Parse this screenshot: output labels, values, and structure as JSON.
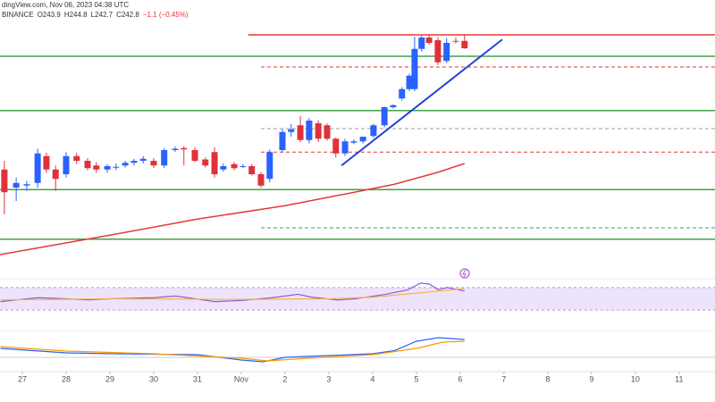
{
  "header": {
    "source": "dingView.com, Nov 06, 2023 04:38 UTC",
    "exchange": "BINANCE",
    "open": "O243.9",
    "high": "H244.8",
    "low": "L242.7",
    "close": "C242.8",
    "change": "−1.1 (−0.45%)"
  },
  "chart_data": [
    {
      "type": "candlestick",
      "up_color": "#2962ff",
      "down_color": "#e0313b",
      "xlim": [
        -0.51,
        15.82
      ],
      "ylim": [
        210,
        250
      ],
      "xticks": [
        {
          "value": 0,
          "label": "27"
        },
        {
          "value": 1,
          "label": "28"
        },
        {
          "value": 2,
          "label": "29"
        },
        {
          "value": 3,
          "label": "30"
        },
        {
          "value": 4,
          "label": "31"
        },
        {
          "value": 5,
          "label": "Nov"
        },
        {
          "value": 6,
          "label": "2"
        },
        {
          "value": 7,
          "label": "3"
        },
        {
          "value": 8,
          "label": "4"
        },
        {
          "value": 9,
          "label": "5"
        },
        {
          "value": 10,
          "label": "6"
        },
        {
          "value": 11,
          "label": "7"
        },
        {
          "value": 12,
          "label": "8"
        },
        {
          "value": 13,
          "label": "9"
        },
        {
          "value": 14,
          "label": "10"
        },
        {
          "value": 15,
          "label": "11"
        }
      ],
      "x": [
        -0.41,
        -0.14,
        0.1,
        0.35,
        0.55,
        0.76,
        1.0,
        1.24,
        1.49,
        1.69,
        1.94,
        2.14,
        2.35,
        2.55,
        2.76,
        3.0,
        3.24,
        3.49,
        3.69,
        3.94,
        4.18,
        4.39,
        4.59,
        4.84,
        5.04,
        5.24,
        5.45,
        5.65,
        5.94,
        6.14,
        6.35,
        6.55,
        6.76,
        6.96,
        7.16,
        7.37,
        7.57,
        7.78,
        8.02,
        8.27,
        8.47,
        8.67,
        8.84,
        8.96,
        9.12,
        9.29,
        9.49,
        9.69,
        9.9,
        10.1
      ],
      "open": [
        224.7,
        222,
        222.3,
        222.7,
        226.7,
        224.7,
        224,
        226.7,
        226,
        225.3,
        224.7,
        225,
        225.3,
        225.7,
        226,
        226,
        225.3,
        227.6,
        227.9,
        227.6,
        226.2,
        227.3,
        224.7,
        225.5,
        225.1,
        225.2,
        224,
        223.3,
        227.6,
        230.3,
        231.3,
        229.1,
        231.6,
        231.3,
        229.3,
        227.1,
        228.7,
        228.9,
        229.7,
        231.3,
        234,
        235.3,
        236.7,
        236.7,
        242.7,
        244.4,
        244,
        240.9,
        243.9,
        243.9
      ],
      "high": [
        226,
        223.5,
        223,
        227.8,
        227.2,
        225.3,
        227.3,
        227.2,
        226.4,
        225.8,
        225.5,
        225.6,
        226,
        226.3,
        226.7,
        226.4,
        227.9,
        228.1,
        228.2,
        228,
        226.5,
        228,
        225.6,
        225.8,
        225.5,
        225.5,
        224.3,
        227.7,
        230.7,
        231.5,
        232.7,
        232.4,
        232,
        231.6,
        229.5,
        229.3,
        229.2,
        229.6,
        231.5,
        234.1,
        234.4,
        237,
        239,
        244.5,
        244.7,
        244.8,
        244.4,
        244.3,
        244.4,
        244.8
      ],
      "low": [
        218,
        220,
        221.5,
        222,
        224.2,
        221.5,
        223.5,
        225.5,
        224.6,
        224.2,
        224.2,
        224.6,
        225,
        225.3,
        225.6,
        224.9,
        224.9,
        227.3,
        225.3,
        225.8,
        225,
        223.5,
        224.4,
        224.6,
        224.9,
        223.8,
        222,
        222.8,
        227.2,
        229.6,
        228.8,
        228.6,
        228.8,
        229,
        226.5,
        226.7,
        228.5,
        228.6,
        229.4,
        231,
        233.8,
        235,
        236.4,
        236.4,
        242.3,
        243.3,
        240.3,
        240.6,
        243.5,
        242.7
      ],
      "close": [
        221.3,
        222.7,
        222.5,
        227.1,
        224.7,
        223.3,
        226.7,
        226,
        224.9,
        224.7,
        225.2,
        225.1,
        225.7,
        226,
        226.3,
        225.3,
        227.6,
        227.8,
        227.7,
        226,
        225.3,
        224,
        225.2,
        224.9,
        225.2,
        224,
        222.3,
        227.3,
        230.3,
        230.7,
        229.1,
        232,
        229.3,
        229.3,
        227.1,
        228.9,
        228.9,
        229.6,
        231.3,
        234,
        234.3,
        236.7,
        238.7,
        242.7,
        244.4,
        243.6,
        240.7,
        243.6,
        243.8,
        242.8
      ],
      "hlines": [
        {
          "value": 241.6,
          "color": "#43a047",
          "style": "solid",
          "from": -0.51
        },
        {
          "value": 233.5,
          "color": "#43a047",
          "style": "solid",
          "from": -0.51
        },
        {
          "value": 221.7,
          "color": "#43a047",
          "style": "solid",
          "from": -0.51
        },
        {
          "value": 214.3,
          "color": "#43a047",
          "style": "solid",
          "from": -0.51
        },
        {
          "value": 244.8,
          "color": "#e53935",
          "style": "solid",
          "from": 5.16
        },
        {
          "value": 240,
          "color": "#e53935",
          "style": "dashed",
          "from": 5.45
        },
        {
          "value": 230.8,
          "color": "#9e9e9e",
          "style": "dashed",
          "from": 5.45
        },
        {
          "value": 227.3,
          "color": "#e53935",
          "style": "dashed",
          "from": 5.45
        },
        {
          "value": 216,
          "color": "#43a047",
          "style": "dashed",
          "from": 5.45
        }
      ],
      "overlays": [
        {
          "color": "#2340d8",
          "width": 2,
          "x": [
            7.29,
            10.96
          ],
          "values": [
            225.3,
            244.1
          ]
        },
        {
          "color": "#e53935",
          "width": 1.5,
          "x": [
            -0.51,
            2,
            4,
            6,
            7.5,
            8.5,
            9.5,
            10.1
          ],
          "values": [
            212,
            214.9,
            217.3,
            219.3,
            221.2,
            222.5,
            224.3,
            225.6
          ]
        }
      ]
    },
    {
      "type": "line",
      "ylim": [
        0,
        100
      ],
      "band": [
        30,
        70
      ],
      "band_color": "#ede4fb",
      "series": [
        {
          "color": "#8e5bd6",
          "x": [
            -0.5,
            0.35,
            1,
            1.5,
            2,
            3,
            3.5,
            4.4,
            5,
            5.7,
            6.3,
            6.6,
            7.2,
            7.6,
            8.3,
            8.8,
            9.1,
            9.3,
            9.5,
            9.7,
            10.1
          ],
          "values": [
            45,
            52,
            50,
            48,
            50,
            52,
            55,
            45,
            47,
            52,
            58,
            53,
            48,
            50,
            58,
            66,
            78,
            76,
            66,
            70,
            64
          ]
        },
        {
          "color": "#f2b544",
          "x": [
            -0.5,
            2,
            5,
            7,
            8,
            9,
            10.1
          ],
          "values": [
            48,
            50,
            49,
            50,
            53,
            60,
            68
          ]
        }
      ]
    },
    {
      "type": "line",
      "ylim": [
        -3,
        5
      ],
      "zero": 0,
      "series": [
        {
          "color": "#2962ff",
          "x": [
            -0.5,
            1,
            2,
            4,
            5,
            5.5,
            6,
            7,
            8,
            8.5,
            9,
            9.5,
            10.1
          ],
          "values": [
            2.0,
            1.0,
            0.8,
            0.6,
            -0.6,
            -1.0,
            0,
            0.4,
            0.8,
            1.5,
            3.6,
            4.4,
            4.0
          ]
        },
        {
          "color": "#ff9800",
          "x": [
            -0.5,
            1,
            3,
            5,
            5.6,
            6.5,
            8,
            9,
            9.6,
            10.1
          ],
          "values": [
            2.4,
            1.4,
            0.8,
            -0.2,
            -0.8,
            -0.2,
            0.6,
            2.0,
            3.4,
            3.6
          ]
        }
      ]
    }
  ]
}
